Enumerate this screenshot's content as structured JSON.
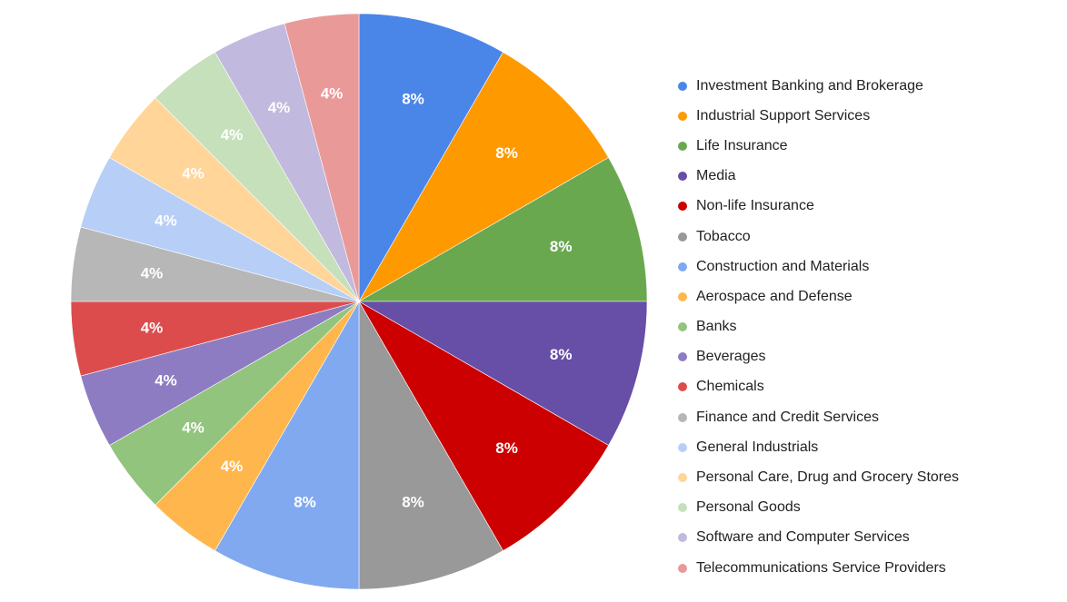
{
  "chart_data": {
    "type": "pie",
    "title": "",
    "legend_position": "right",
    "slices": [
      {
        "label": "Investment Banking and Brokerage",
        "value": 8,
        "display": "8%",
        "color": "#4a86e8"
      },
      {
        "label": "Industrial Support Services",
        "value": 8,
        "display": "8%",
        "color": "#ff9900"
      },
      {
        "label": "Life Insurance",
        "value": 8,
        "display": "8%",
        "color": "#6aa84f"
      },
      {
        "label": "Media",
        "value": 8,
        "display": "8%",
        "color": "#674ea7"
      },
      {
        "label": "Non-life Insurance",
        "value": 8,
        "display": "8%",
        "color": "#cc0000"
      },
      {
        "label": "Tobacco",
        "value": 8,
        "display": "8%",
        "color": "#999999"
      },
      {
        "label": "Construction and Materials",
        "value": 8,
        "display": "8%",
        "color": "#80a9ef"
      },
      {
        "label": "Aerospace and Defense",
        "value": 4,
        "display": "4%",
        "color": "#ffb74d"
      },
      {
        "label": "Banks",
        "value": 4,
        "display": "4%",
        "color": "#93c47d"
      },
      {
        "label": "Beverages",
        "value": 4,
        "display": "4%",
        "color": "#8e7cc3"
      },
      {
        "label": "Chemicals",
        "value": 4,
        "display": "4%",
        "color": "#dd4c4c"
      },
      {
        "label": "Finance and Credit Services",
        "value": 4,
        "display": "4%",
        "color": "#b7b7b7"
      },
      {
        "label": "General Industrials",
        "value": 4,
        "display": "4%",
        "color": "#b7cff7"
      },
      {
        "label": "Personal Care, Drug and Grocery Stores",
        "value": 4,
        "display": "4%",
        "color": "#ffd599"
      },
      {
        "label": "Personal Goods",
        "value": 4,
        "display": "4%",
        "color": "#c5e0bb"
      },
      {
        "label": "Software and Computer Services",
        "value": 4,
        "display": "4%",
        "color": "#c2b9de"
      },
      {
        "label": "Telecommunications Service Providers",
        "value": 4,
        "display": "4%",
        "color": "#ea9999"
      }
    ]
  }
}
